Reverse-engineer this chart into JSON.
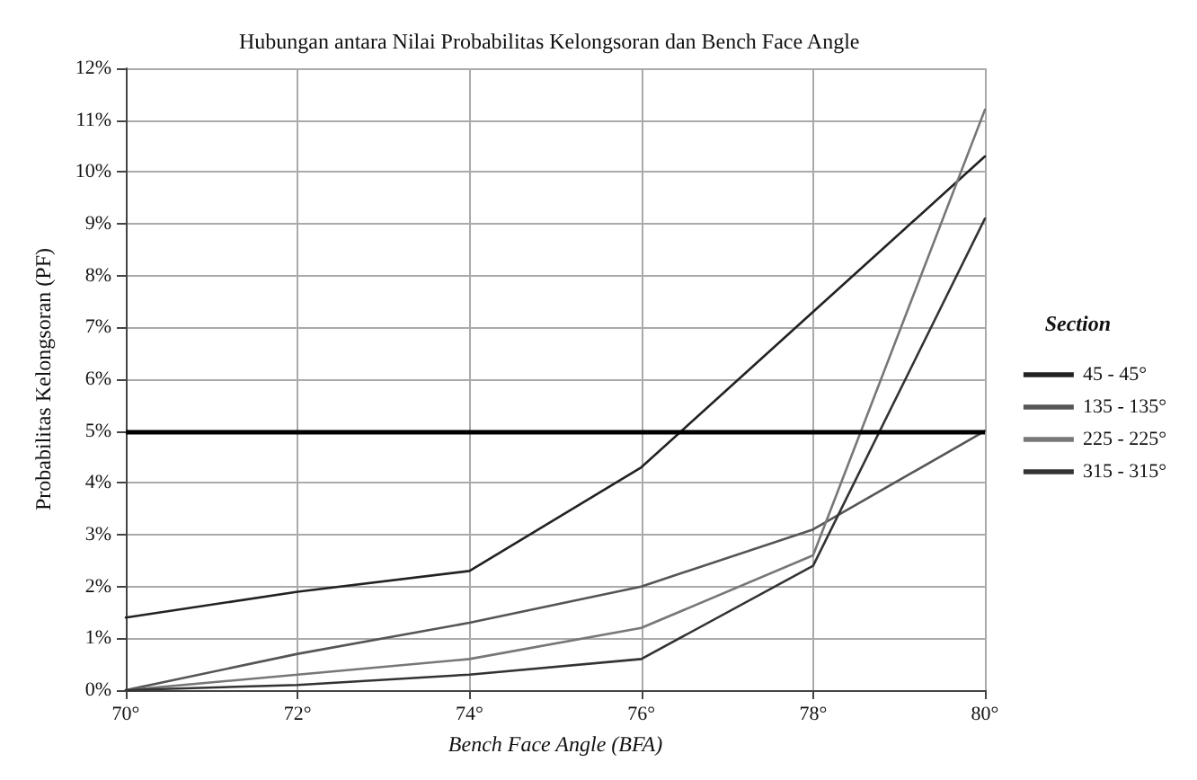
{
  "chart_data": {
    "type": "line",
    "title": "Hubungan antara Nilai Probabilitas Kelongsoran dan Bench Face Angle",
    "xlabel": "Bench Face Angle (BFA)",
    "ylabel": "Probabilitas Kelongsoran (PF)",
    "legend_title": "Section",
    "legend": "right",
    "grid": true,
    "marker": "none",
    "line_style": "solid",
    "x": [
      70,
      72,
      74,
      76,
      78,
      80
    ],
    "series": [
      {
        "name": "45 - 45°",
        "color": "#222222",
        "values": [
          1.4,
          1.9,
          2.3,
          4.3,
          7.3,
          10.3
        ]
      },
      {
        "name": "135 - 135°",
        "color": "#555555",
        "values": [
          0,
          0.7,
          1.3,
          2.0,
          3.1,
          5.0
        ]
      },
      {
        "name": "225 - 225°",
        "color": "#777777",
        "values": [
          0,
          0.3,
          0.6,
          1.2,
          2.6,
          11.2
        ]
      },
      {
        "name": "315 - 315°",
        "color": "#333333",
        "values": [
          0,
          0.1,
          0.3,
          0.6,
          2.4,
          9.1
        ]
      }
    ],
    "ref_lines": [
      {
        "axis": "y",
        "value": 5,
        "color": "#000000"
      }
    ],
    "xlim": [
      70,
      80
    ],
    "xticks": [
      {
        "value": 70,
        "label": "70°"
      },
      {
        "value": 72,
        "label": "72°"
      },
      {
        "value": 74,
        "label": "74°"
      },
      {
        "value": 76,
        "label": "76°"
      },
      {
        "value": 78,
        "label": "78°"
      },
      {
        "value": 80,
        "label": "80°"
      }
    ],
    "ylim": [
      0,
      12
    ],
    "yticks": [
      {
        "value": 0,
        "label": "0%"
      },
      {
        "value": 1,
        "label": "1%"
      },
      {
        "value": 2,
        "label": "2%"
      },
      {
        "value": 3,
        "label": "3%"
      },
      {
        "value": 4,
        "label": "4%"
      },
      {
        "value": 5,
        "label": "5%"
      },
      {
        "value": 6,
        "label": "6%"
      },
      {
        "value": 7,
        "label": "7%"
      },
      {
        "value": 8,
        "label": "8%"
      },
      {
        "value": 9,
        "label": "9%"
      },
      {
        "value": 10,
        "label": "10%"
      },
      {
        "value": 11,
        "label": "11%"
      },
      {
        "value": 12,
        "label": "12%"
      }
    ]
  }
}
